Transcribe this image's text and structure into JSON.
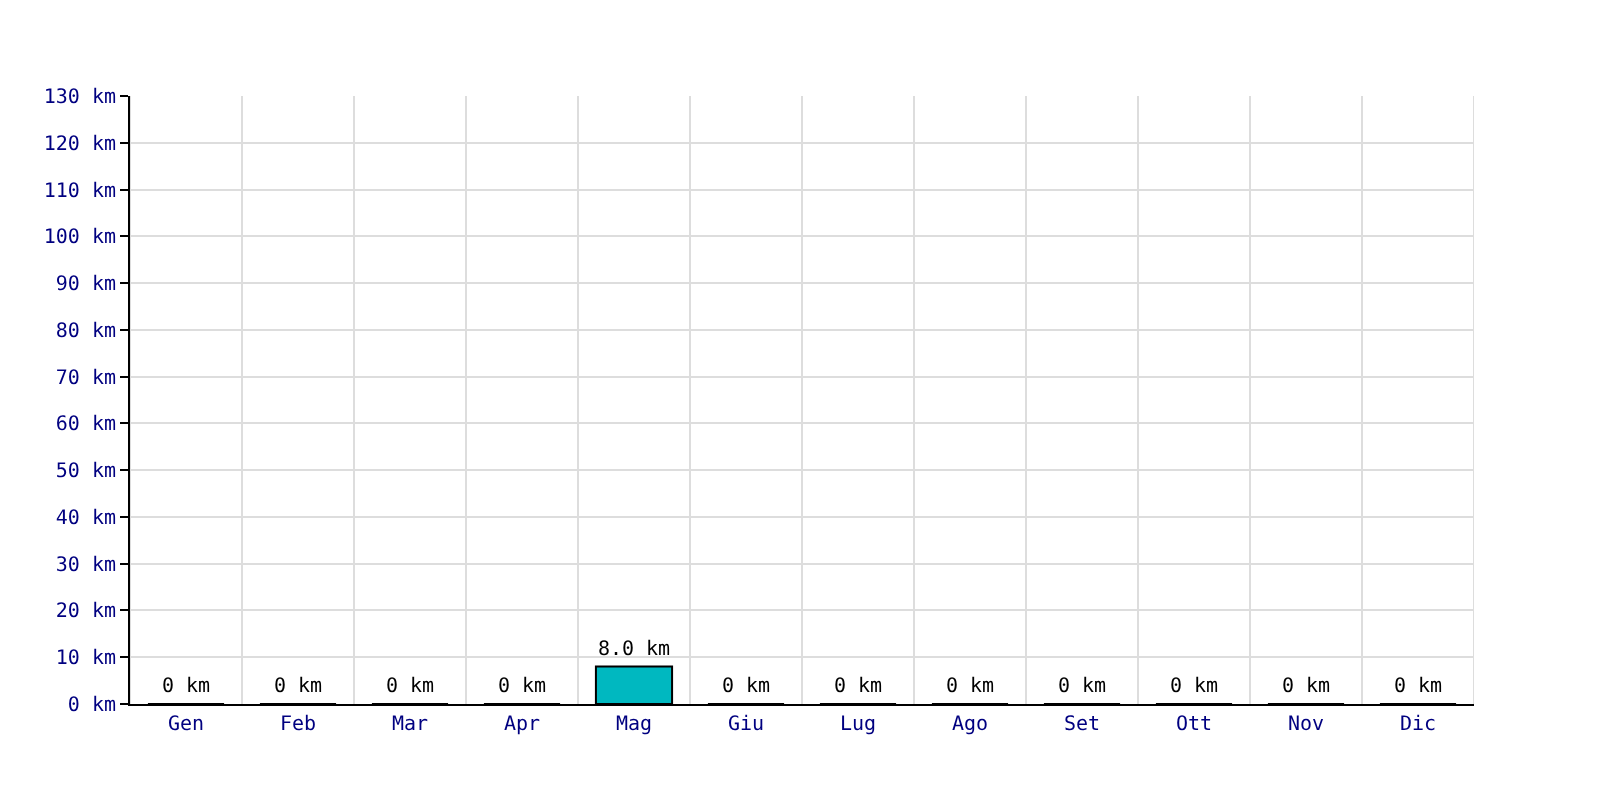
{
  "chart_data": {
    "type": "bar",
    "categories": [
      "Gen",
      "Feb",
      "Mar",
      "Apr",
      "Mag",
      "Giu",
      "Lug",
      "Ago",
      "Set",
      "Ott",
      "Nov",
      "Dic"
    ],
    "values": [
      0,
      0,
      0,
      0,
      8.0,
      0,
      0,
      0,
      0,
      0,
      0,
      0
    ],
    "value_labels": [
      "0 km",
      "0 km",
      "0 km",
      "0 km",
      "8.0 km",
      "0 km",
      "0 km",
      "0 km",
      "0 km",
      "0 km",
      "0 km",
      "0 km"
    ],
    "color": "#00b8c0",
    "ylim": [
      0,
      130
    ],
    "yticks": [
      {
        "value": 0,
        "label": "0 km"
      },
      {
        "value": 10,
        "label": "10 km"
      },
      {
        "value": 20,
        "label": "20 km"
      },
      {
        "value": 30,
        "label": "30 km"
      },
      {
        "value": 40,
        "label": "40 km"
      },
      {
        "value": 50,
        "label": "50 km"
      },
      {
        "value": 60,
        "label": "60 km"
      },
      {
        "value": 70,
        "label": "70 km"
      },
      {
        "value": 80,
        "label": "80 km"
      },
      {
        "value": 90,
        "label": "90 km"
      },
      {
        "value": 100,
        "label": "100 km"
      },
      {
        "value": 110,
        "label": "110 km"
      },
      {
        "value": 120,
        "label": "120 km"
      },
      {
        "value": 130,
        "label": "130 km"
      }
    ],
    "grid": true
  }
}
